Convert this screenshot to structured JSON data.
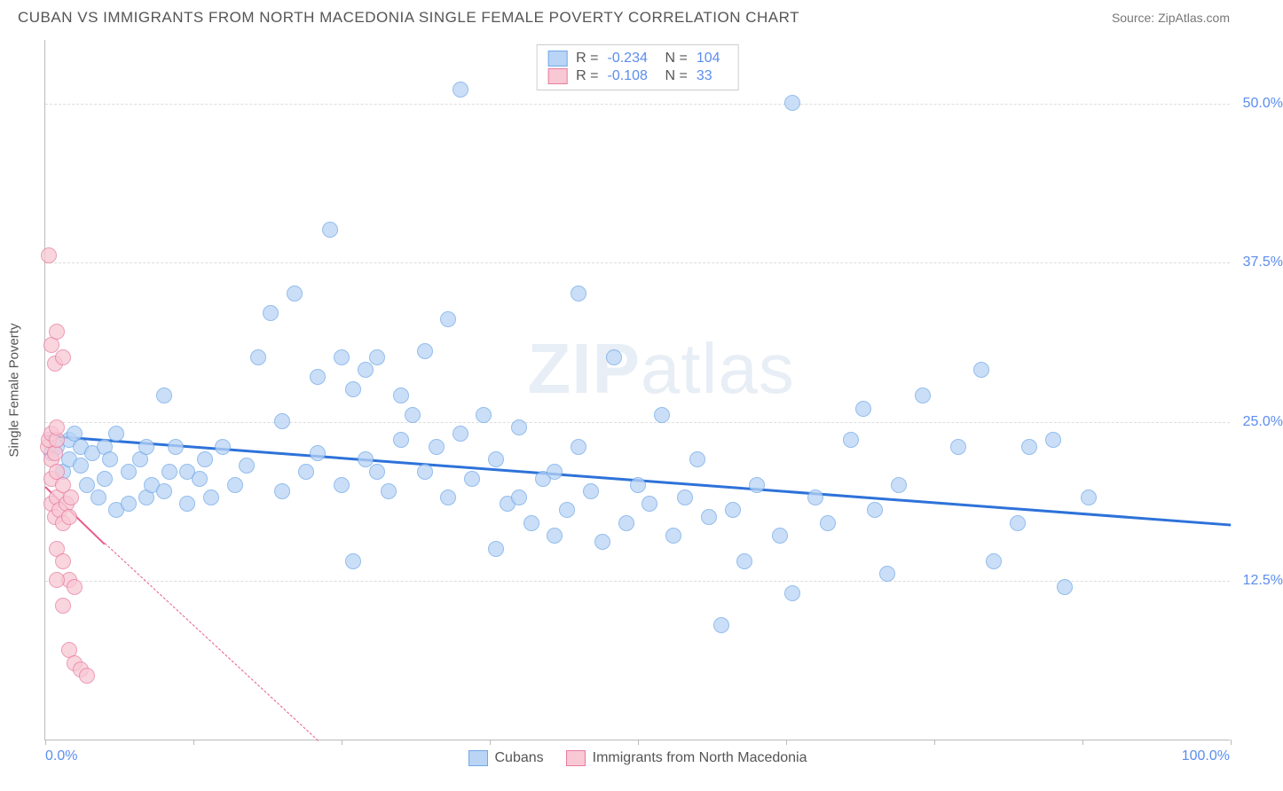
{
  "header": {
    "title": "CUBAN VS IMMIGRANTS FROM NORTH MACEDONIA SINGLE FEMALE POVERTY CORRELATION CHART",
    "source": "Source: ZipAtlas.com"
  },
  "chart": {
    "type": "scatter",
    "y_axis_title": "Single Female Poverty",
    "xlim": [
      0,
      100
    ],
    "ylim": [
      0,
      55
    ],
    "x_tick_positions": [
      0,
      12.5,
      25,
      37.5,
      50,
      62.5,
      75,
      87.5,
      100
    ],
    "x_label_start": "0.0%",
    "x_label_end": "100.0%",
    "y_gridlines": [
      {
        "value": 12.5,
        "label": "12.5%"
      },
      {
        "value": 25.0,
        "label": "25.0%"
      },
      {
        "value": 37.5,
        "label": "37.5%"
      },
      {
        "value": 50.0,
        "label": "50.0%"
      }
    ],
    "background_color": "#ffffff",
    "grid_color": "#dddddd",
    "watermark": "ZIPatlas",
    "series": [
      {
        "name": "Cubans",
        "marker_fill": "#b9d4f5",
        "marker_stroke": "#6fa8e8",
        "marker_radius": 9,
        "trend_color": "#2d72d9",
        "trend_width": 3,
        "trend_style": "solid",
        "trend_start": [
          0,
          24.0
        ],
        "trend_end": [
          100,
          17.0
        ],
        "R": "-0.234",
        "N": "104",
        "points": [
          [
            0.5,
            22.5
          ],
          [
            1,
            23
          ],
          [
            1.5,
            21
          ],
          [
            2,
            23.5
          ],
          [
            2,
            22
          ],
          [
            2.5,
            24
          ],
          [
            3,
            21.5
          ],
          [
            3,
            23
          ],
          [
            3.5,
            20
          ],
          [
            4,
            22.5
          ],
          [
            4.5,
            19
          ],
          [
            5,
            23
          ],
          [
            5,
            20.5
          ],
          [
            5.5,
            22
          ],
          [
            6,
            18
          ],
          [
            6,
            24
          ],
          [
            7,
            18.5
          ],
          [
            7,
            21
          ],
          [
            8,
            22
          ],
          [
            8.5,
            19
          ],
          [
            8.5,
            23
          ],
          [
            9,
            20
          ],
          [
            10,
            27
          ],
          [
            10,
            19.5
          ],
          [
            10.5,
            21
          ],
          [
            11,
            23
          ],
          [
            12,
            18.5
          ],
          [
            12,
            21
          ],
          [
            13,
            20.5
          ],
          [
            13.5,
            22
          ],
          [
            14,
            19
          ],
          [
            15,
            23
          ],
          [
            16,
            20
          ],
          [
            17,
            21.5
          ],
          [
            18,
            30
          ],
          [
            19,
            33.5
          ],
          [
            20,
            19.5
          ],
          [
            20,
            25
          ],
          [
            21,
            35
          ],
          [
            22,
            21
          ],
          [
            23,
            22.5
          ],
          [
            23,
            28.5
          ],
          [
            24,
            40
          ],
          [
            25,
            30
          ],
          [
            25,
            20
          ],
          [
            26,
            14
          ],
          [
            26,
            27.5
          ],
          [
            27,
            22
          ],
          [
            27,
            29
          ],
          [
            28,
            30
          ],
          [
            28,
            21
          ],
          [
            29,
            19.5
          ],
          [
            30,
            27
          ],
          [
            30,
            23.5
          ],
          [
            31,
            25.5
          ],
          [
            32,
            30.5
          ],
          [
            32,
            21
          ],
          [
            33,
            23
          ],
          [
            34,
            33
          ],
          [
            34,
            19
          ],
          [
            35,
            24
          ],
          [
            35,
            51
          ],
          [
            36,
            20.5
          ],
          [
            37,
            25.5
          ],
          [
            38,
            22
          ],
          [
            38,
            15
          ],
          [
            39,
            18.5
          ],
          [
            40,
            19
          ],
          [
            40,
            24.5
          ],
          [
            41,
            17
          ],
          [
            42,
            20.5
          ],
          [
            43,
            16
          ],
          [
            43,
            21
          ],
          [
            44,
            18
          ],
          [
            45,
            23
          ],
          [
            45,
            35
          ],
          [
            46,
            19.5
          ],
          [
            47,
            15.5
          ],
          [
            48,
            30
          ],
          [
            49,
            17
          ],
          [
            50,
            20
          ],
          [
            51,
            18.5
          ],
          [
            52,
            25.5
          ],
          [
            53,
            16
          ],
          [
            54,
            19
          ],
          [
            55,
            22
          ],
          [
            56,
            17.5
          ],
          [
            57,
            9
          ],
          [
            58,
            18
          ],
          [
            59,
            14
          ],
          [
            60,
            20
          ],
          [
            62,
            16
          ],
          [
            63,
            11.5
          ],
          [
            65,
            19
          ],
          [
            66,
            17
          ],
          [
            68,
            23.5
          ],
          [
            69,
            26
          ],
          [
            70,
            18
          ],
          [
            71,
            13
          ],
          [
            72,
            20
          ],
          [
            74,
            27
          ],
          [
            63,
            50
          ],
          [
            77,
            23
          ],
          [
            79,
            29
          ],
          [
            80,
            14
          ],
          [
            82,
            17
          ],
          [
            83,
            23
          ],
          [
            85,
            23.5
          ],
          [
            86,
            12
          ],
          [
            88,
            19
          ]
        ]
      },
      {
        "name": "Immigrants from North Macedonia",
        "marker_fill": "#f8c8d4",
        "marker_stroke": "#e87ca0",
        "marker_radius": 9,
        "trend_color": "#e85a8a",
        "trend_width": 2,
        "trend_style": "solid_then_dashed",
        "trend_start": [
          0,
          20.0
        ],
        "trend_solid_end": [
          5,
          15.5
        ],
        "trend_dashed_end": [
          23,
          0
        ],
        "R": "-0.108",
        "N": "33",
        "points": [
          [
            0.2,
            23
          ],
          [
            0.3,
            23.5
          ],
          [
            0.5,
            22
          ],
          [
            0.5,
            24
          ],
          [
            0.8,
            22.5
          ],
          [
            1,
            23.5
          ],
          [
            1,
            24.5
          ],
          [
            0.3,
            38
          ],
          [
            0.5,
            31
          ],
          [
            0.8,
            29.5
          ],
          [
            1,
            32
          ],
          [
            1.5,
            30
          ],
          [
            0.5,
            18.5
          ],
          [
            0.8,
            17.5
          ],
          [
            1,
            19
          ],
          [
            1.2,
            18
          ],
          [
            1.5,
            17
          ],
          [
            1.8,
            18.5
          ],
          [
            2,
            17.5
          ],
          [
            2.2,
            19
          ],
          [
            0.5,
            20.5
          ],
          [
            1,
            21
          ],
          [
            1.5,
            20
          ],
          [
            1,
            15
          ],
          [
            1.5,
            14
          ],
          [
            2,
            12.5
          ],
          [
            2.5,
            12
          ],
          [
            1,
            12.5
          ],
          [
            1.5,
            10.5
          ],
          [
            2,
            7
          ],
          [
            2.5,
            6
          ],
          [
            3,
            5.5
          ],
          [
            3.5,
            5
          ]
        ]
      }
    ],
    "legend_bottom": [
      {
        "label": "Cubans",
        "fill": "#b9d4f5",
        "stroke": "#6fa8e8"
      },
      {
        "label": "Immigrants from North Macedonia",
        "fill": "#f8c8d4",
        "stroke": "#e87ca0"
      }
    ]
  }
}
